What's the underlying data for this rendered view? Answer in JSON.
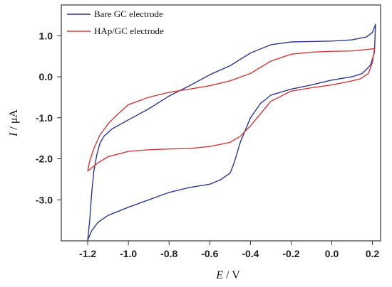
{
  "chart_data": {
    "type": "line",
    "xlabel": {
      "symbol": "E",
      "unit": " / V"
    },
    "ylabel": {
      "symbol": "I",
      "unit": " / μA"
    },
    "xlim": [
      -1.33,
      0.24
    ],
    "ylim": [
      -4.0,
      1.75
    ],
    "x_ticks": [
      -1.2,
      -1.0,
      -0.8,
      -0.6,
      -0.4,
      -0.2,
      0.0,
      0.2
    ],
    "x_tick_labels": [
      "-1.2",
      "-1.0",
      "-0.8",
      "-0.6",
      "-0.4",
      "-0.2",
      "0.0",
      "0.2"
    ],
    "y_ticks": [
      1.0,
      0.0,
      -1.0,
      -2.0,
      -3.0
    ],
    "y_tick_labels": [
      "1.0",
      "0.0",
      "-1.0",
      "-2.0",
      "-3.0"
    ],
    "grid": false,
    "legend_position": "top-left",
    "series": [
      {
        "name": "Bare GC electrode",
        "color": "#2b3990",
        "points": [
          [
            -1.2,
            -3.98
          ],
          [
            -1.19,
            -3.5
          ],
          [
            -1.18,
            -2.8
          ],
          [
            -1.17,
            -2.3
          ],
          [
            -1.155,
            -1.9
          ],
          [
            -1.14,
            -1.62
          ],
          [
            -1.12,
            -1.45
          ],
          [
            -1.08,
            -1.27
          ],
          [
            -1.0,
            -1.05
          ],
          [
            -0.9,
            -0.78
          ],
          [
            -0.8,
            -0.47
          ],
          [
            -0.7,
            -0.22
          ],
          [
            -0.6,
            0.05
          ],
          [
            -0.5,
            0.27
          ],
          [
            -0.4,
            0.58
          ],
          [
            -0.3,
            0.78
          ],
          [
            -0.2,
            0.85
          ],
          [
            -0.1,
            0.86
          ],
          [
            0.0,
            0.87
          ],
          [
            0.1,
            0.9
          ],
          [
            0.17,
            0.97
          ],
          [
            0.2,
            1.08
          ],
          [
            0.215,
            1.28
          ],
          [
            0.21,
            0.6
          ],
          [
            0.19,
            0.28
          ],
          [
            0.15,
            0.08
          ],
          [
            0.1,
            0.0
          ],
          [
            0.0,
            -0.08
          ],
          [
            -0.1,
            -0.2
          ],
          [
            -0.2,
            -0.3
          ],
          [
            -0.3,
            -0.45
          ],
          [
            -0.35,
            -0.65
          ],
          [
            -0.4,
            -1.0
          ],
          [
            -0.45,
            -1.6
          ],
          [
            -0.48,
            -2.1
          ],
          [
            -0.5,
            -2.35
          ],
          [
            -0.55,
            -2.52
          ],
          [
            -0.6,
            -2.62
          ],
          [
            -0.7,
            -2.7
          ],
          [
            -0.8,
            -2.82
          ],
          [
            -0.9,
            -3.0
          ],
          [
            -1.0,
            -3.18
          ],
          [
            -1.1,
            -3.38
          ],
          [
            -1.15,
            -3.55
          ],
          [
            -1.18,
            -3.75
          ],
          [
            -1.2,
            -3.98
          ]
        ]
      },
      {
        "name": "HAp/GC electrode",
        "color": "#d03a3a",
        "points": [
          [
            -1.2,
            -2.3
          ],
          [
            -1.19,
            -2.05
          ],
          [
            -1.17,
            -1.75
          ],
          [
            -1.14,
            -1.42
          ],
          [
            -1.1,
            -1.15
          ],
          [
            -1.05,
            -0.9
          ],
          [
            -1.0,
            -0.68
          ],
          [
            -0.9,
            -0.5
          ],
          [
            -0.8,
            -0.38
          ],
          [
            -0.7,
            -0.3
          ],
          [
            -0.6,
            -0.22
          ],
          [
            -0.5,
            -0.1
          ],
          [
            -0.4,
            0.08
          ],
          [
            -0.3,
            0.38
          ],
          [
            -0.2,
            0.55
          ],
          [
            -0.1,
            0.6
          ],
          [
            0.0,
            0.62
          ],
          [
            0.1,
            0.63
          ],
          [
            0.2,
            0.68
          ],
          [
            0.21,
            0.69
          ],
          [
            0.2,
            0.35
          ],
          [
            0.18,
            0.08
          ],
          [
            0.14,
            -0.05
          ],
          [
            0.1,
            -0.1
          ],
          [
            0.0,
            -0.2
          ],
          [
            -0.1,
            -0.27
          ],
          [
            -0.2,
            -0.35
          ],
          [
            -0.3,
            -0.6
          ],
          [
            -0.35,
            -0.9
          ],
          [
            -0.4,
            -1.2
          ],
          [
            -0.45,
            -1.45
          ],
          [
            -0.5,
            -1.6
          ],
          [
            -0.6,
            -1.7
          ],
          [
            -0.7,
            -1.75
          ],
          [
            -0.8,
            -1.76
          ],
          [
            -0.9,
            -1.78
          ],
          [
            -1.0,
            -1.82
          ],
          [
            -1.1,
            -1.95
          ],
          [
            -1.15,
            -2.1
          ],
          [
            -1.2,
            -2.3
          ]
        ]
      }
    ]
  }
}
